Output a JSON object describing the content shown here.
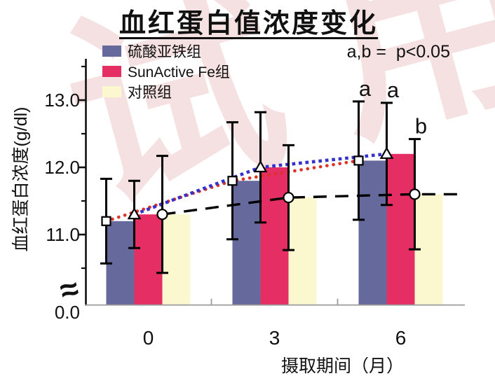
{
  "watermark": {
    "text": "试用",
    "color": "#ecc4c4"
  },
  "title": {
    "text": "血红蛋白值浓度变化"
  },
  "annotation": {
    "text": "a,b =  p<0.05"
  },
  "legend": {
    "items": [
      {
        "label": "硫酸亚铁组",
        "color": "#66699b"
      },
      {
        "label": "SunActive Fe组",
        "color": "#e52e63"
      },
      {
        "label": "对照组",
        "color": "#fbf8d0"
      }
    ]
  },
  "axes": {
    "y_label": "血红蛋白浓度(g/dl)",
    "x_label": "摄取期间（月）",
    "y_ticks": [
      {
        "label": "13.0",
        "value": 13.0
      },
      {
        "label": "12.0",
        "value": 12.0
      },
      {
        "label": "11.0",
        "value": 11.0
      },
      {
        "label": "0.0",
        "value": null
      }
    ],
    "y_minor_tick_values": [
      13.5,
      12.5,
      11.5,
      10.5
    ],
    "axis_break_glyph": "≈"
  },
  "chart_data": {
    "type": "bar",
    "title": "血红蛋白值浓度变化",
    "xlabel": "摄取期间（月）",
    "ylabel": "血红蛋白浓度(g/dl)",
    "categories": [
      "0",
      "3",
      "6"
    ],
    "axis_note": "broken y-axis: shows 0.0 then range ~10.4–13.2, gridlines off",
    "legend_position": "top-left",
    "series": [
      {
        "name": "硫酸亚铁组",
        "bar_color": "#66699b",
        "marker": "square",
        "line_color": "#dd3226",
        "line_style": "dotted",
        "values": [
          11.2,
          11.8,
          12.1
        ],
        "errors": [
          0.63,
          0.87,
          0.88
        ],
        "sig_letters": [
          "",
          "",
          "a"
        ]
      },
      {
        "name": "SunActive Fe组",
        "bar_color": "#e52e63",
        "marker": "triangle",
        "line_color": "#3431cc",
        "line_style": "dotted",
        "values": [
          11.3,
          12.0,
          12.2
        ],
        "errors": [
          0.5,
          0.82,
          0.76
        ],
        "sig_letters": [
          "",
          "",
          "a"
        ]
      },
      {
        "name": "对照组",
        "bar_color": "#fbf8d0",
        "marker": "circle",
        "line_color": "#000000",
        "line_style": "dashed",
        "values": [
          11.3,
          11.55,
          11.6
        ],
        "errors": [
          0.87,
          0.78,
          0.82
        ],
        "sig_letters": [
          "",
          "",
          "b"
        ]
      }
    ],
    "significance_note": "a,b =  p<0.05"
  }
}
